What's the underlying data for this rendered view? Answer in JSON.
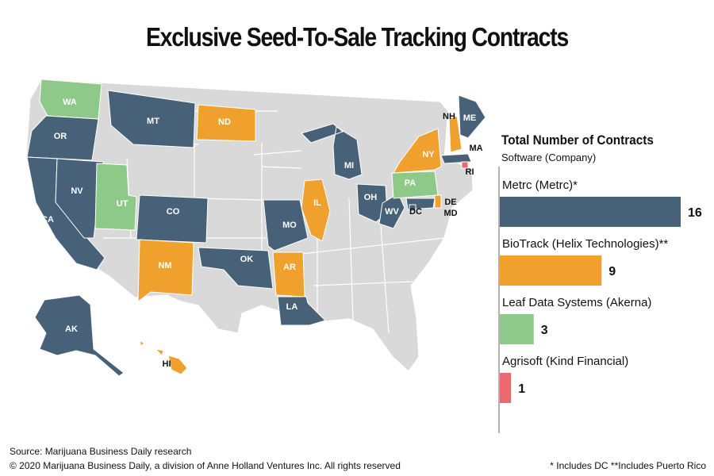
{
  "title": "Exclusive Seed-To-Sale Tracking Contracts",
  "panel": {
    "title": "Total Number of Contracts",
    "subtitle": "Software (Company)"
  },
  "colors": {
    "metrc": "#476178",
    "biotrack": "#f0a02c",
    "leaf": "#8ec98a",
    "agrisoft": "#ec6a6e",
    "none": "#d9d9d9"
  },
  "chart_data": {
    "type": "bar",
    "orientation": "horizontal",
    "categories": [
      "Metrc (Metrc)*",
      "BioTrack (Helix Technologies)**",
      "Leaf Data Systems (Akerna)",
      "Agrisoft (Kind Financial)"
    ],
    "values": [
      16,
      9,
      3,
      1
    ],
    "xlim": [
      0,
      16
    ],
    "grid": false,
    "legend": "none"
  },
  "map": {
    "states": [
      {
        "code": "WA",
        "vendor": "leaf"
      },
      {
        "code": "OR",
        "vendor": "metrc"
      },
      {
        "code": "CA",
        "vendor": "metrc"
      },
      {
        "code": "NV",
        "vendor": "metrc"
      },
      {
        "code": "MT",
        "vendor": "metrc"
      },
      {
        "code": "ND",
        "vendor": "biotrack"
      },
      {
        "code": "UT",
        "vendor": "leaf"
      },
      {
        "code": "CO",
        "vendor": "metrc"
      },
      {
        "code": "NM",
        "vendor": "biotrack"
      },
      {
        "code": "OK",
        "vendor": "metrc"
      },
      {
        "code": "AR",
        "vendor": "biotrack"
      },
      {
        "code": "LA",
        "vendor": "metrc"
      },
      {
        "code": "MO",
        "vendor": "metrc"
      },
      {
        "code": "IL",
        "vendor": "biotrack"
      },
      {
        "code": "MI",
        "vendor": "metrc"
      },
      {
        "code": "OH",
        "vendor": "metrc"
      },
      {
        "code": "WV",
        "vendor": "metrc"
      },
      {
        "code": "PA",
        "vendor": "leaf"
      },
      {
        "code": "NY",
        "vendor": "biotrack"
      },
      {
        "code": "NH",
        "vendor": "biotrack"
      },
      {
        "code": "ME",
        "vendor": "metrc"
      },
      {
        "code": "MA",
        "vendor": "metrc"
      },
      {
        "code": "RI",
        "vendor": "agrisoft"
      },
      {
        "code": "DE",
        "vendor": "biotrack"
      },
      {
        "code": "MD",
        "vendor": "metrc"
      },
      {
        "code": "DC",
        "vendor": "metrc"
      },
      {
        "code": "AK",
        "vendor": "metrc"
      },
      {
        "code": "HI",
        "vendor": "biotrack"
      }
    ]
  },
  "footer": {
    "source": "Source: Marijuana Business Daily research",
    "copyright": "© 2020 Marijuana Business Daily, a division of Anne Holland Ventures Inc. All rights reserved",
    "note": "* Includes DC **Includes Puerto Rico"
  }
}
